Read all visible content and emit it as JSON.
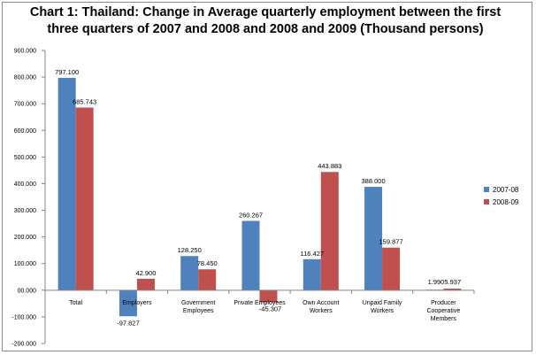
{
  "chart_data": {
    "type": "bar",
    "title_line1": "Chart 1: Thailand: Change in Average quarterly employment between the first",
    "title_line2": "three quarters of 2007 and 2008 and 2008 and 2009 (Thousand persons)",
    "categories": [
      [
        "Total"
      ],
      [
        "Employers"
      ],
      [
        "Government",
        "Employees"
      ],
      [
        "Private Employees"
      ],
      [
        "Own Account",
        "Workers"
      ],
      [
        "Unpaid Family",
        "Workers"
      ],
      [
        "Producer",
        "Cooperative",
        "Members"
      ]
    ],
    "series": [
      {
        "name": "2007-08",
        "color": "#4f81bd",
        "values": [
          797.1,
          -97.827,
          128.25,
          260.267,
          116.427,
          388.0,
          1.99
        ],
        "labels": [
          "797.100",
          "-97.827",
          "128.250",
          "260.267",
          "116.427",
          "388.000",
          "1.990"
        ]
      },
      {
        "name": "2008-09",
        "color": "#c0504d",
        "values": [
          685.743,
          42.9,
          78.45,
          -45.307,
          443.883,
          159.877,
          5.937
        ],
        "labels": [
          "685.743",
          "42.900",
          "78.450",
          "-45.307",
          "443.883",
          "159.877",
          "5.937"
        ]
      }
    ],
    "y_ticks": [
      {
        "v": 900,
        "label": "900.000"
      },
      {
        "v": 800,
        "label": "800.000"
      },
      {
        "v": 700,
        "label": "700.000"
      },
      {
        "v": 600,
        "label": "600.000"
      },
      {
        "v": 500,
        "label": "500.000"
      },
      {
        "v": 400,
        "label": "400.000"
      },
      {
        "v": 300,
        "label": "300.000"
      },
      {
        "v": 200,
        "label": "200.000"
      },
      {
        "v": 100,
        "label": "100.000"
      },
      {
        "v": 0,
        "label": "00.000"
      },
      {
        "v": -100,
        "label": "-100.000"
      },
      {
        "v": -200,
        "label": "-200.000"
      }
    ],
    "ylim": [
      -200,
      900
    ],
    "grid": false,
    "legend_position": "right"
  }
}
